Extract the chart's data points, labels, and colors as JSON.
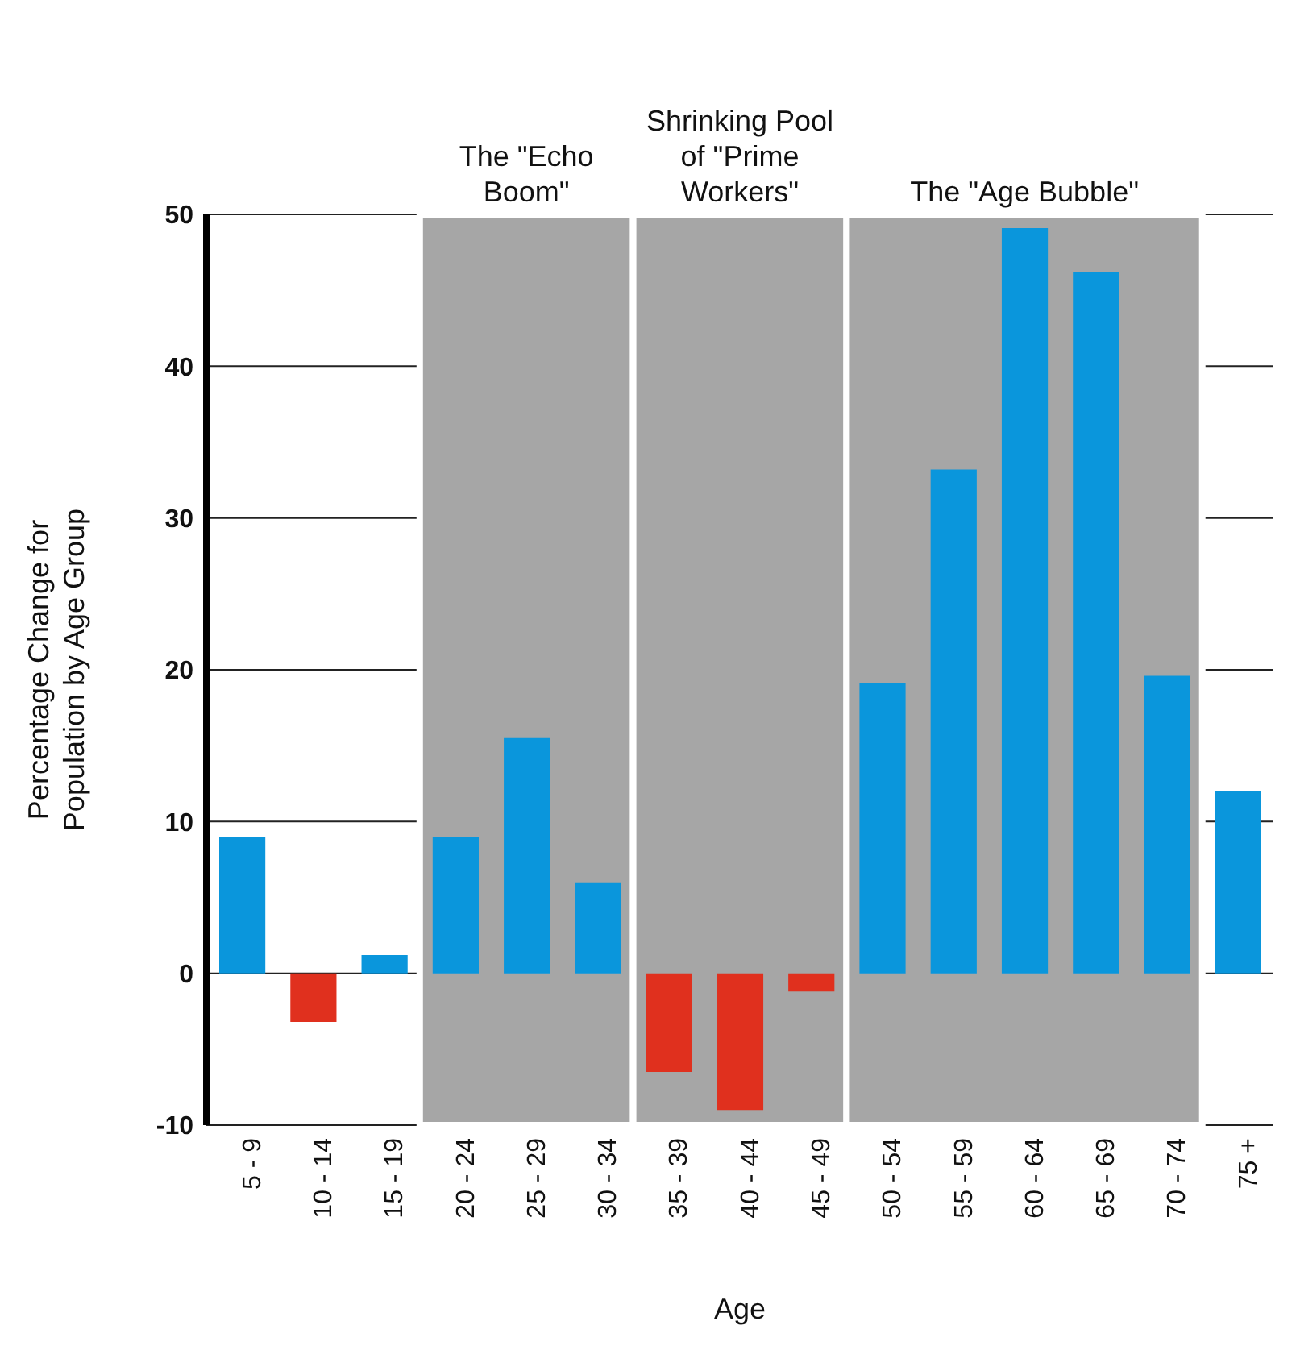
{
  "chart_data": {
    "type": "bar",
    "xlabel": "Age",
    "ylabel": "Percentage Change for Population by Age Group",
    "categories": [
      "5 - 9",
      "10 - 14",
      "15 - 19",
      "20 - 24",
      "25 - 29",
      "30 - 34",
      "35 - 39",
      "40 - 44",
      "45 - 49",
      "50 - 54",
      "55 - 59",
      "60 - 64",
      "65 - 69",
      "70 - 74",
      "75 +"
    ],
    "values": [
      9,
      -3.2,
      1.2,
      9,
      15.5,
      6,
      -6.5,
      -9,
      -1.2,
      19.1,
      33.2,
      49.1,
      46.2,
      19.6,
      12
    ],
    "colors": [
      "#0a96dc",
      "#e0301e",
      "#0a96dc",
      "#0a96dc",
      "#0a96dc",
      "#0a96dc",
      "#e0301e",
      "#e0301e",
      "#e0301e",
      "#0a96dc",
      "#0a96dc",
      "#0a96dc",
      "#0a96dc",
      "#0a96dc",
      "#0a96dc"
    ],
    "ylim": [
      -10,
      50
    ],
    "yticks": [
      -10,
      0,
      10,
      20,
      30,
      40,
      50
    ],
    "grid": "y",
    "legend": false,
    "bands": [
      {
        "axis": "x",
        "from": "20 - 24",
        "to": "30 - 34",
        "label": "The \"Echo Boom\"",
        "color": "#a6a6a6"
      },
      {
        "axis": "x",
        "from": "35 - 39",
        "to": "45 - 49",
        "label": "Shrinking Pool of \"Prime Workers\"",
        "color": "#a6a6a6"
      },
      {
        "axis": "x",
        "from": "50 - 54",
        "to": "70 - 74",
        "label": "The \"Age Bubble\"",
        "color": "#a6a6a6"
      }
    ]
  }
}
